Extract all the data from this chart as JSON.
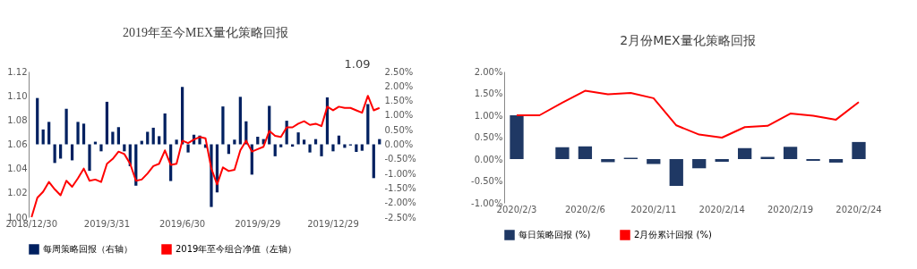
{
  "chart_data": [
    {
      "type": "bar",
      "title": "2019年至今MEX量化策略回报",
      "categories": [
        "2018/12/30",
        null,
        null,
        null,
        null,
        null,
        null,
        null,
        null,
        null,
        null,
        null,
        null,
        "2019/3/31",
        null,
        null,
        null,
        null,
        null,
        null,
        null,
        null,
        null,
        null,
        null,
        null,
        "2019/6/30",
        null,
        null,
        null,
        null,
        null,
        null,
        null,
        null,
        null,
        null,
        null,
        null,
        "2019/9/29",
        null,
        null,
        null,
        null,
        null,
        null,
        null,
        null,
        null,
        null,
        null,
        null,
        "2019/12/29",
        null,
        null,
        null,
        null,
        null,
        null,
        null,
        null
      ],
      "series": [
        {
          "name": "每周策略回报（右轴）",
          "type": "bar",
          "axis": "y2",
          "color": "#002060",
          "values": [
            null,
            1.59,
            0.51,
            0.77,
            -0.64,
            -0.49,
            1.22,
            -0.55,
            0.77,
            0.71,
            -0.91,
            0.09,
            -0.24,
            1.46,
            0.43,
            0.59,
            -0.24,
            -0.75,
            -1.42,
            0.12,
            0.43,
            0.57,
            0.28,
            1.06,
            -1.26,
            0.16,
            1.97,
            -0.28,
            0.33,
            0.3,
            -0.12,
            -2.15,
            -1.65,
            1.3,
            -0.33,
            0.16,
            1.63,
            0.79,
            -1.04,
            0.26,
            0.18,
            1.32,
            -0.41,
            -0.1,
            0.81,
            -0.08,
            0.41,
            0.16,
            -0.28,
            0.18,
            -0.41,
            1.61,
            -0.24,
            0.3,
            -0.12,
            -0.04,
            -0.26,
            -0.22,
            1.38,
            -1.16,
            0.18
          ]
        },
        {
          "name": "2019年至今组合净值（左轴）",
          "type": "line",
          "color": "#ff0000",
          "values": [
            1.0,
            1.016,
            1.021,
            1.029,
            1.023,
            1.018,
            1.03,
            1.025,
            1.032,
            1.04,
            1.03,
            1.031,
            1.029,
            1.044,
            1.048,
            1.054,
            1.052,
            1.044,
            1.03,
            1.031,
            1.036,
            1.042,
            1.044,
            1.055,
            1.043,
            1.044,
            1.063,
            1.061,
            1.064,
            1.066,
            1.065,
            1.04,
            1.027,
            1.041,
            1.038,
            1.039,
            1.055,
            1.063,
            1.054,
            1.056,
            1.058,
            1.071,
            1.067,
            1.066,
            1.074,
            1.074,
            1.077,
            1.079,
            1.076,
            1.077,
            1.075,
            1.091,
            1.088,
            1.091,
            1.09,
            1.09,
            1.088,
            1.086,
            1.1,
            1.088,
            1.09
          ]
        }
      ],
      "ylim": [
        1.0,
        1.12
      ],
      "yticks": [
        {
          "value": 1.0,
          "label": "1.00"
        },
        {
          "value": 1.02,
          "label": "1.02"
        },
        {
          "value": 1.04,
          "label": "1.04"
        },
        {
          "value": 1.06,
          "label": "1.06"
        },
        {
          "value": 1.08,
          "label": "1.08"
        },
        {
          "value": 1.1,
          "label": "1.10"
        },
        {
          "value": 1.12,
          "label": "1.12"
        }
      ],
      "y2lim": [
        -2.5,
        2.5
      ],
      "y2ticks": [
        {
          "value": -2.5,
          "label": "-2.50%"
        },
        {
          "value": -2.0,
          "label": "-2.00%"
        },
        {
          "value": -1.5,
          "label": "-1.50%"
        },
        {
          "value": -1.0,
          "label": "-1.00%"
        },
        {
          "value": -0.5,
          "label": "-0.50%"
        },
        {
          "value": 0,
          "label": "0.00%"
        },
        {
          "value": 0.5,
          "label": "0.50%"
        },
        {
          "value": 1.0,
          "label": "1.00%"
        },
        {
          "value": 1.5,
          "label": "1.50%"
        },
        {
          "value": 2.0,
          "label": "2.00%"
        },
        {
          "value": 2.5,
          "label": "2.50%"
        }
      ],
      "annotations": [
        "1.09"
      ],
      "legend": "bottom"
    },
    {
      "type": "bar",
      "title": "2月份MEX量化策略回报",
      "categories": [
        "2020/2/3",
        null,
        null,
        "2020/2/6",
        null,
        null,
        "2020/2/11",
        null,
        null,
        "2020/2/14",
        null,
        null,
        "2020/2/19",
        null,
        null,
        "2020/2/24"
      ],
      "series": [
        {
          "name": "每日策略回报 (%)",
          "type": "bar",
          "color": "#1f3864",
          "values": [
            1.0,
            null,
            0.27,
            0.29,
            -0.07,
            0.03,
            -0.11,
            -0.61,
            -0.21,
            -0.06,
            0.25,
            0.05,
            0.28,
            -0.04,
            -0.08,
            0.39
          ]
        },
        {
          "name": "2月份累计回报 (%)",
          "type": "line",
          "color": "#ff0000",
          "values": [
            1.0,
            1.0,
            1.29,
            1.56,
            1.48,
            1.51,
            1.39,
            0.77,
            0.56,
            0.49,
            0.73,
            0.76,
            1.04,
            0.99,
            0.9,
            1.3
          ]
        }
      ],
      "ylim": [
        -1.0,
        2.0
      ],
      "yticks": [
        {
          "value": -1.0,
          "label": "-1.00%"
        },
        {
          "value": -0.5,
          "label": "-0.50%"
        },
        {
          "value": 0,
          "label": "0.00%"
        },
        {
          "value": 0.5,
          "label": "0.50%"
        },
        {
          "value": 1.0,
          "label": "1.00%"
        },
        {
          "value": 1.5,
          "label": "1.50%"
        },
        {
          "value": 2.0,
          "label": "2.00%"
        }
      ],
      "legend": "bottom"
    }
  ]
}
